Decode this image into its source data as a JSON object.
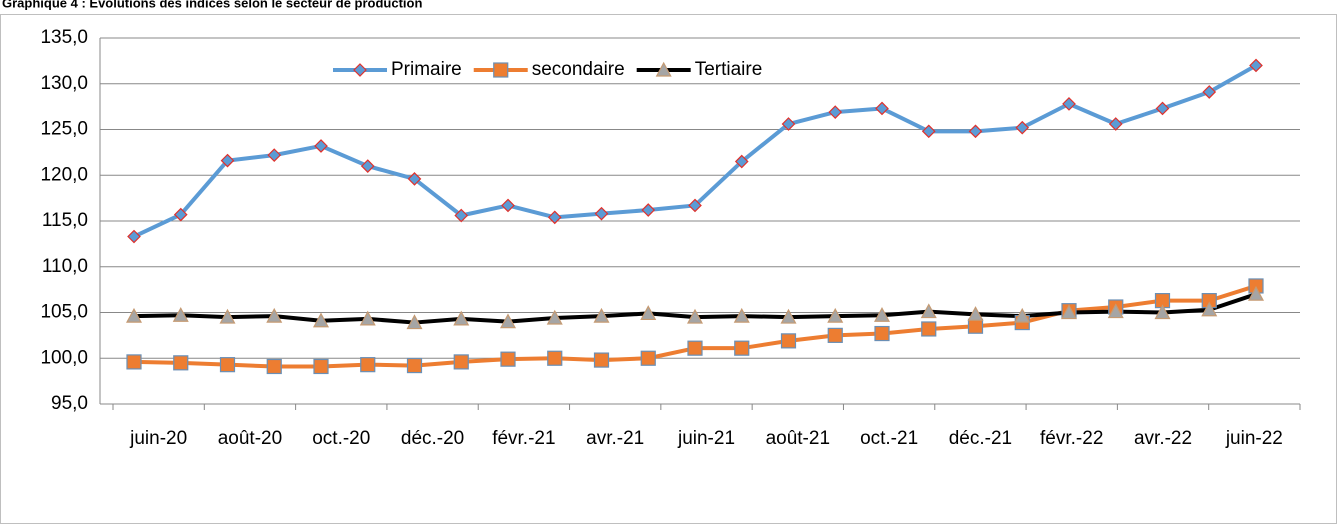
{
  "chart_data": {
    "type": "line",
    "title": "Graphique 4 : Évolutions des indices selon le secteur de production",
    "categories": [
      "juin-20",
      null,
      "août-20",
      null,
      "oct.-20",
      null,
      "déc.-20",
      null,
      "févr.-21",
      null,
      "avr.-21",
      null,
      "juin-21",
      null,
      "août-21",
      null,
      "oct.-21",
      null,
      "déc.-21",
      null,
      "févr.-22",
      null,
      "avr.-22",
      null,
      "juin-22"
    ],
    "series": [
      {
        "name": "Primaire",
        "color": "#5b9bd5",
        "marker": "diamond",
        "marker_stroke": "#e0312c",
        "values": [
          113.3,
          115.7,
          121.6,
          122.2,
          123.2,
          121.0,
          119.6,
          115.6,
          116.7,
          115.4,
          115.8,
          116.2,
          116.7,
          121.5,
          125.6,
          126.9,
          127.3,
          124.8,
          124.8,
          125.2,
          127.8,
          125.6,
          127.3,
          129.1,
          132.0
        ]
      },
      {
        "name": "secondaire",
        "color": "#ed7d31",
        "marker": "square",
        "marker_stroke": "#6a8fb5",
        "values": [
          99.6,
          99.5,
          99.3,
          99.1,
          99.1,
          99.3,
          99.2,
          99.6,
          99.9,
          100.0,
          99.8,
          100.0,
          101.1,
          101.1,
          101.9,
          102.5,
          102.7,
          103.2,
          103.5,
          103.9,
          105.2,
          105.6,
          106.3,
          106.3,
          107.9
        ]
      },
      {
        "name": "Tertiaire",
        "color": "#000000",
        "marker": "triangle",
        "marker_fill": "#a5a5a5",
        "marker_stroke": "#c59a72",
        "values": [
          104.6,
          104.7,
          104.5,
          104.6,
          104.1,
          104.3,
          103.9,
          104.3,
          104.0,
          104.4,
          104.6,
          104.9,
          104.5,
          104.6,
          104.5,
          104.6,
          104.7,
          105.1,
          104.8,
          104.6,
          105.0,
          105.1,
          105.0,
          105.3,
          107.0
        ]
      }
    ],
    "ylim": [
      95,
      135
    ],
    "yticks": [
      {
        "value": 95,
        "label": "95,0"
      },
      {
        "value": 100,
        "label": "100,0"
      },
      {
        "value": 105,
        "label": "105,0"
      },
      {
        "value": 110,
        "label": "110,0"
      },
      {
        "value": 115,
        "label": "115,0"
      },
      {
        "value": 120,
        "label": "120,0"
      },
      {
        "value": 125,
        "label": "125,0"
      },
      {
        "value": 130,
        "label": "130,0"
      },
      {
        "value": 135,
        "label": "135,0"
      }
    ],
    "grid": true,
    "legend": "top"
  }
}
